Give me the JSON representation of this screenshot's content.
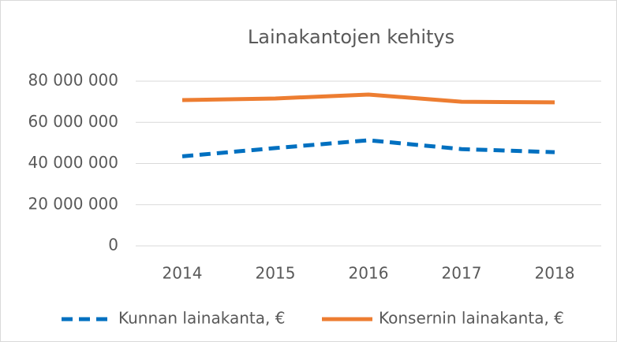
{
  "chart_data": {
    "type": "line",
    "title": "Lainakantojen kehitys",
    "categories": [
      "2014",
      "2015",
      "2016",
      "2017",
      "2018"
    ],
    "series": [
      {
        "name": "Kunnan lainakanta, €",
        "color": "#0070c0",
        "dashed": true,
        "values": [
          43500000,
          47500000,
          51300000,
          47000000,
          45500000
        ]
      },
      {
        "name": "Konsernin lainakanta, €",
        "color": "#ed7d31",
        "dashed": false,
        "values": [
          70800000,
          71600000,
          73500000,
          70000000,
          69700000
        ]
      }
    ],
    "ylim": [
      0,
      80000000
    ],
    "yticks": [
      0,
      {
        "value": 20000000,
        "label": "20 000 000"
      },
      {
        "value": 40000000,
        "label": "40 000 000"
      },
      {
        "value": 60000000,
        "label": "60 000 000"
      },
      {
        "value": 80000000,
        "label": "80 000 000"
      }
    ],
    "grid": true,
    "legend": "bottom"
  }
}
